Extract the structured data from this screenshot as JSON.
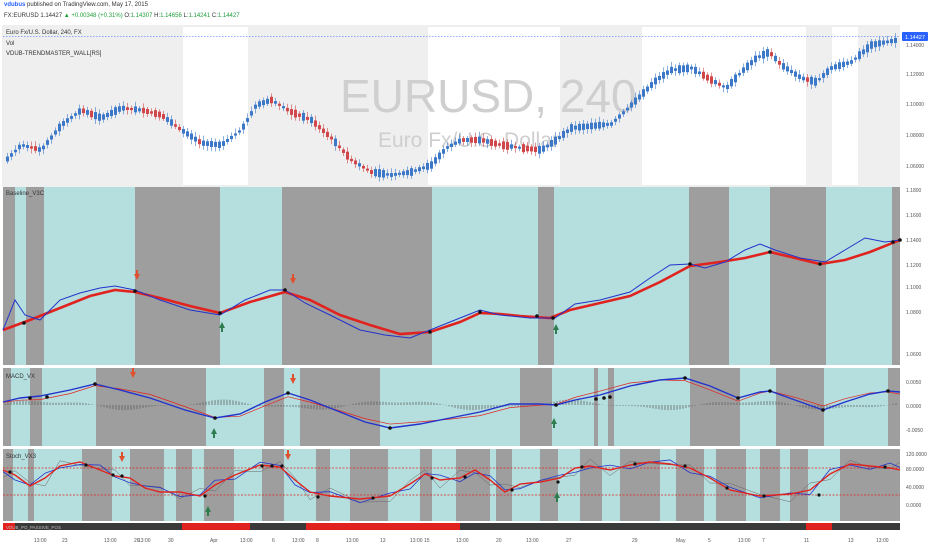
{
  "header": {
    "user": "vdubus",
    "published_text": "published on TradingView.com, May 17, 2015",
    "ticker": "FX:EURUSD",
    "price": "1.14427",
    "change": "▲ +0.00348 (+0.31%)",
    "ohlc": {
      "o_label": "O:",
      "o": "1.14307",
      "h_label": "H:",
      "h": "1.14656",
      "l_label": "L:",
      "l": "1.14241",
      "c_label": "C:",
      "c": "1.14427"
    }
  },
  "main_panel": {
    "legend_title": "Euro Fx/U.S. Dollar, 240, FX",
    "legend_vol": "Vol",
    "legend_indicator": "VDUB-TRENDMASTER_WALL[RS]",
    "watermark_symbol": "EURUSD, 240",
    "watermark_desc": "Euro Fx/U.S. Dollar",
    "last_price_tag": "1.14427",
    "y_ticks": [
      "1.14000",
      "1.12000",
      "1.10000",
      "1.08000",
      "1.06000"
    ]
  },
  "baseline_panel": {
    "title": "Baseline_V3C",
    "y_ticks": [
      "1.1800",
      "1.1600",
      "1.1400",
      "1.1200",
      "1.1000",
      "1.0800",
      "1.0600"
    ]
  },
  "macd_panel": {
    "title": "MACD_VX",
    "y_ticks": [
      "0.0050",
      "0.0000",
      "-0.0050"
    ]
  },
  "stoch_panel": {
    "title": "Stoch_VX3",
    "y_ticks": [
      "120.0000",
      "80.0000",
      "40.0000",
      "0.0000"
    ]
  },
  "bottom_bar": {
    "label": "VDUB_PO_PASSIVE_POS"
  },
  "x_axis": {
    "ticks": [
      "13:00",
      "23",
      "13:00",
      "26",
      "13:00",
      "30",
      "Apr",
      "13:00",
      "6",
      "13:00",
      "8",
      "13:00",
      "13",
      "13:00",
      "15",
      "13:00",
      "20",
      "13:00",
      "27",
      "29",
      "May",
      "5",
      "13:00",
      "7",
      "11",
      "13",
      "13:00"
    ]
  },
  "colors": {
    "bull_candle": "#3c78c8",
    "bear_candle": "#d0464a",
    "teal_bg": "#b5dede",
    "gray_bg": "#9e9e9e",
    "baseline_line": "#e0231f",
    "price_line": "#2233cc",
    "arrow_down": "#e0502f",
    "arrow_up": "#2e7d4f"
  }
}
